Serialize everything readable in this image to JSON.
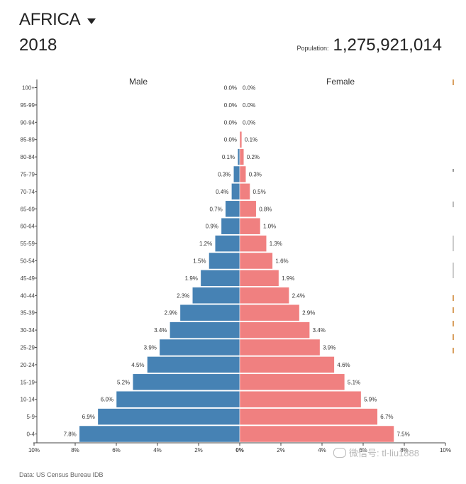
{
  "header": {
    "region": "AFRICA",
    "year": "2018",
    "population_label": "Population:",
    "population_value": "1,275,921,014"
  },
  "watermark": {
    "text": "微信号: tl-liu1888"
  },
  "footer": {
    "note": "Data: US Census Bureau IDB"
  },
  "chart_data": {
    "type": "bar",
    "orientation": "horizontal-pyramid",
    "colors": {
      "male": "#4682b4",
      "female": "#f08080"
    },
    "categories": [
      "100+",
      "95-99",
      "90-94",
      "85-89",
      "80-84",
      "75-79",
      "70-74",
      "65-69",
      "60-64",
      "55-59",
      "50-54",
      "45-49",
      "40-44",
      "35-39",
      "30-34",
      "25-29",
      "20-24",
      "15-19",
      "10-14",
      "5-9",
      "0-4"
    ],
    "series": [
      {
        "name": "Male",
        "values": [
          0.0,
          0.0,
          0.0,
          0.0,
          0.1,
          0.3,
          0.4,
          0.7,
          0.9,
          1.2,
          1.5,
          1.9,
          2.3,
          2.9,
          3.4,
          3.9,
          4.5,
          5.2,
          6.0,
          6.9,
          7.8
        ]
      },
      {
        "name": "Female",
        "values": [
          0.0,
          0.0,
          0.0,
          0.1,
          0.2,
          0.3,
          0.5,
          0.8,
          1.0,
          1.3,
          1.6,
          1.9,
          2.4,
          2.9,
          3.4,
          3.9,
          4.6,
          5.1,
          5.9,
          6.7,
          7.5
        ]
      }
    ],
    "x_ticks": [
      "10%",
      "8%",
      "6%",
      "4%",
      "2%",
      "0%",
      "2%",
      "4%",
      "6%",
      "8%",
      "10%"
    ],
    "xlim": [
      -10,
      10
    ],
    "value_suffix": "%"
  }
}
